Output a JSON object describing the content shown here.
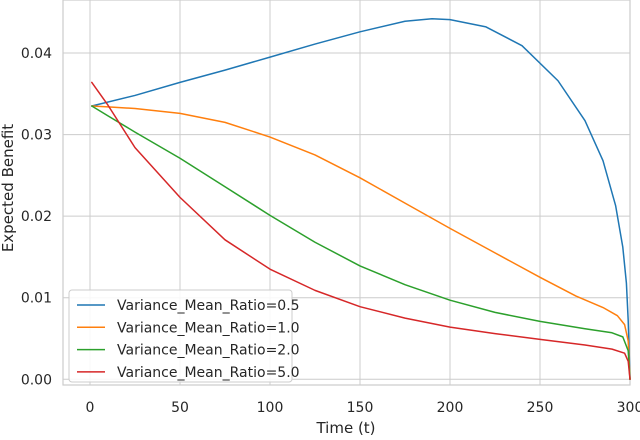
{
  "chart_data": {
    "type": "line",
    "title": "",
    "xlabel": "Time (t)",
    "ylabel": "Expected Benefit",
    "xlim": [
      -15,
      300
    ],
    "ylim": [
      -0.0007,
      0.0465
    ],
    "grid": true,
    "legend_position": "bottom-left",
    "xticks": [
      0,
      50,
      100,
      150,
      200,
      250,
      300
    ],
    "xtick_labels": [
      "0",
      "50",
      "100",
      "150",
      "200",
      "250",
      "300"
    ],
    "yticks": [
      0.0,
      0.01,
      0.02,
      0.03,
      0.04
    ],
    "ytick_labels": [
      "0.00",
      "0.01",
      "0.02",
      "0.03",
      "0.04"
    ],
    "series": [
      {
        "name": "Variance_Mean_Ratio=0.5",
        "color": "#1f77b4",
        "x": [
          1,
          25,
          50,
          75,
          100,
          125,
          150,
          175,
          190,
          200,
          220,
          240,
          260,
          275,
          285,
          292,
          296,
          298,
          299,
          300
        ],
        "y": [
          0.0335,
          0.0348,
          0.0364,
          0.0379,
          0.0395,
          0.0411,
          0.0426,
          0.0439,
          0.0442,
          0.0441,
          0.0432,
          0.0409,
          0.0366,
          0.0317,
          0.0268,
          0.0213,
          0.0162,
          0.0118,
          0.0072,
          0.0
        ]
      },
      {
        "name": "Variance_Mean_Ratio=1.0",
        "color": "#ff7f0e",
        "x": [
          1,
          10,
          25,
          50,
          75,
          100,
          125,
          150,
          175,
          200,
          225,
          250,
          270,
          285,
          293,
          297,
          299,
          300
        ],
        "y": [
          0.0335,
          0.0334,
          0.0332,
          0.0326,
          0.0315,
          0.0297,
          0.0275,
          0.0247,
          0.0216,
          0.0185,
          0.0155,
          0.0125,
          0.0102,
          0.0088,
          0.0078,
          0.0067,
          0.0047,
          0.0
        ]
      },
      {
        "name": "Variance_Mean_Ratio=2.0",
        "color": "#2ca02c",
        "x": [
          1,
          10,
          25,
          50,
          75,
          100,
          125,
          150,
          175,
          200,
          225,
          250,
          275,
          290,
          296,
          299,
          300
        ],
        "y": [
          0.0335,
          0.0323,
          0.0303,
          0.0271,
          0.0236,
          0.0201,
          0.0168,
          0.0139,
          0.0116,
          0.0097,
          0.0082,
          0.0071,
          0.0062,
          0.0057,
          0.0052,
          0.0035,
          0.0
        ]
      },
      {
        "name": "Variance_Mean_Ratio=5.0",
        "color": "#d62728",
        "x": [
          1,
          10,
          25,
          50,
          75,
          100,
          125,
          150,
          175,
          200,
          225,
          250,
          275,
          290,
          297,
          299,
          300
        ],
        "y": [
          0.0364,
          0.0336,
          0.0284,
          0.0223,
          0.0171,
          0.0135,
          0.0109,
          0.0089,
          0.0075,
          0.0064,
          0.0056,
          0.0049,
          0.0042,
          0.0037,
          0.0032,
          0.0022,
          0.0
        ]
      }
    ]
  }
}
